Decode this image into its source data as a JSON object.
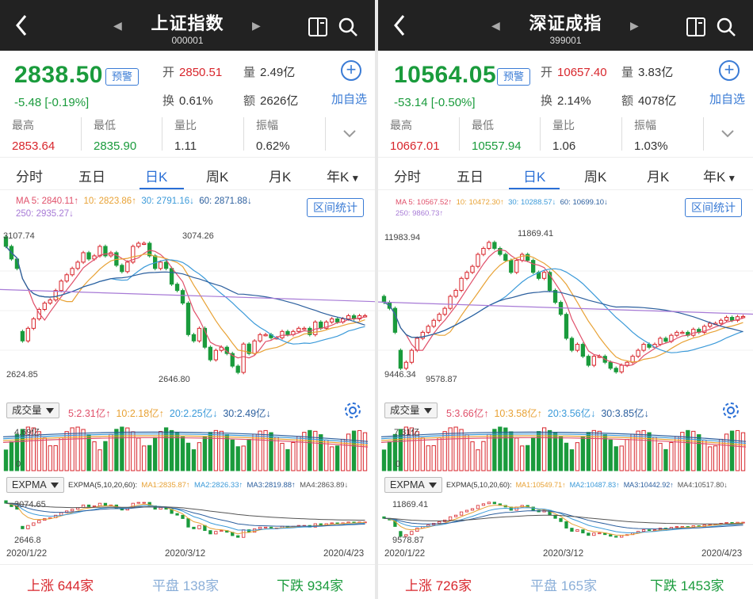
{
  "panels": [
    {
      "title": "上证指数",
      "code": "000001",
      "price": "2838.50",
      "warn_label": "预警",
      "change": "-5.48  [-0.19%]",
      "open_label": "开",
      "open": "2850.51",
      "volume_label": "量",
      "volume": "2.49亿",
      "turnover_label": "换",
      "turnover": "0.61%",
      "amount_label": "额",
      "amount": "2626亿",
      "add_label": "加自选",
      "stats": [
        {
          "label": "最高",
          "value": "2853.64",
          "color": "#d8262c"
        },
        {
          "label": "最低",
          "value": "2835.90",
          "color": "#1a9b3c"
        },
        {
          "label": "量比",
          "value": "1.11",
          "color": "#333333"
        },
        {
          "label": "振幅",
          "value": "0.62%",
          "color": "#333333"
        }
      ],
      "tabs": [
        "分时",
        "五日",
        "日K",
        "周K",
        "月K",
        "年K"
      ],
      "active_tab": 2,
      "ma_line1": [
        {
          "text": "MA 5: 2840.11↑",
          "color": "#e0506a"
        },
        {
          "text": "10: 2823.86↑",
          "color": "#e8a235"
        },
        {
          "text": "30: 2791.16↓",
          "color": "#3b9ad9"
        },
        {
          "text": "60: 2871.88↓",
          "color": "#2c5f9e"
        }
      ],
      "ma_line2": [
        {
          "text": "250: 2935.27↓",
          "color": "#a77ad6"
        }
      ],
      "range_label": "区间统计",
      "k_high_label": "3107.74",
      "k_low_label": "2624.85",
      "k_peak": "3074.26",
      "k_trough": "2646.80",
      "vol_select": "成交量",
      "vol_ma": [
        {
          "text": "5:2.31亿↑",
          "color": "#e0506a"
        },
        {
          "text": "10:2.18亿↑",
          "color": "#e8a235"
        },
        {
          "text": "20:2.25亿↓",
          "color": "#3b9ad9"
        },
        {
          "text": "30:2.49亿↓",
          "color": "#2c5f9e"
        }
      ],
      "vol_max": "4.69亿",
      "vol_zero": "0",
      "expma_select": "EXPMA",
      "expma_params": "EXPMA(5,10,20,60):",
      "expma_ma": [
        {
          "text": "MA1:2835.87↑",
          "color": "#e8a235"
        },
        {
          "text": "MA2:2826.33↑",
          "color": "#3b9ad9"
        },
        {
          "text": "MA3:2819.88↑",
          "color": "#2c5f9e"
        },
        {
          "text": "MA4:2863.89↓",
          "color": "#555555"
        }
      ],
      "expma_high": "3074.65",
      "expma_low": "2646.8",
      "dates": [
        "2020/1/22",
        "2020/3/12",
        "2020/4/23"
      ],
      "footer": {
        "up": "上涨 644家",
        "flat": "平盘 138家",
        "down": "下跌 934家"
      }
    },
    {
      "title": "深证成指",
      "code": "399001",
      "price": "10564.05",
      "warn_label": "预警",
      "change": "-53.14  [-0.50%]",
      "open_label": "开",
      "open": "10657.40",
      "volume_label": "量",
      "volume": "3.83亿",
      "turnover_label": "换",
      "turnover": "2.14%",
      "amount_label": "额",
      "amount": "4078亿",
      "add_label": "加自选",
      "stats": [
        {
          "label": "最高",
          "value": "10667.01",
          "color": "#d8262c"
        },
        {
          "label": "最低",
          "value": "10557.94",
          "color": "#1a9b3c"
        },
        {
          "label": "量比",
          "value": "1.06",
          "color": "#333333"
        },
        {
          "label": "振幅",
          "value": "1.03%",
          "color": "#333333"
        }
      ],
      "tabs": [
        "分时",
        "五日",
        "日K",
        "周K",
        "月K",
        "年K"
      ],
      "active_tab": 2,
      "ma_line1": [
        {
          "text": "MA 5: 10567.52↑",
          "color": "#e0506a"
        },
        {
          "text": "10: 10472.30↑",
          "color": "#e8a235"
        },
        {
          "text": "30: 10288.57↓",
          "color": "#3b9ad9"
        },
        {
          "text": "60: 10699.10↓",
          "color": "#2c5f9e"
        }
      ],
      "ma_line2": [
        {
          "text": "250: 9860.73↑",
          "color": "#a77ad6"
        }
      ],
      "range_label": "区间统计",
      "k_high_label": "11983.94",
      "k_low_label": "9446.34",
      "k_peak": "11869.41",
      "k_trough": "9578.87",
      "vol_select": "成交量",
      "vol_ma": [
        {
          "text": "5:3.66亿↑",
          "color": "#e0506a"
        },
        {
          "text": "10:3.58亿↑",
          "color": "#e8a235"
        },
        {
          "text": "20:3.56亿↓",
          "color": "#3b9ad9"
        },
        {
          "text": "30:3.85亿↓",
          "color": "#2c5f9e"
        }
      ],
      "vol_max": "7.31亿",
      "vol_zero": "0",
      "expma_select": "EXPMA",
      "expma_params": "EXPMA(5,10,20,60):",
      "expma_ma": [
        {
          "text": "MA1:10549.71↑",
          "color": "#e8a235"
        },
        {
          "text": "MA2:10487.83↑",
          "color": "#3b9ad9"
        },
        {
          "text": "MA3:10442.92↑",
          "color": "#2c5f9e"
        },
        {
          "text": "MA4:10517.80↓",
          "color": "#555555"
        }
      ],
      "expma_high": "11869.41",
      "expma_low": "9578.87",
      "dates": [
        "2020/1/22",
        "2020/3/12",
        "2020/4/23"
      ],
      "footer": {
        "up": "上涨 726家",
        "flat": "平盘 165家",
        "down": "下跌 1453家"
      }
    }
  ],
  "colors": {
    "up": "#d8262c",
    "down": "#1a9b3c",
    "accent": "#2a6fd6",
    "header_bg": "#222222"
  },
  "chart_data": [
    {
      "type": "candlestick",
      "title": "上证指数 日K",
      "x_range": [
        "2020/1/22",
        "2020/4/23"
      ],
      "ylim": [
        2624.85,
        3107.74
      ],
      "annotations": {
        "high": 3074.26,
        "low": 2646.8
      },
      "close": [
        3060,
        3020,
        2990,
        2760,
        2800,
        2830,
        2860,
        2880,
        2890,
        2920,
        2950,
        2970,
        2990,
        3010,
        3040,
        3020,
        3030,
        3060,
        3030,
        3040,
        3000,
        2980,
        3010,
        3060,
        3070,
        3070,
        3030,
        2990,
        3010,
        2990,
        2940,
        2920,
        2880,
        2780,
        2760,
        2800,
        2740,
        2700,
        2730,
        2740,
        2720,
        2680,
        2660,
        2750,
        2720,
        2760,
        2780,
        2780,
        2770,
        2770,
        2790,
        2780,
        2790,
        2800,
        2800,
        2780,
        2820,
        2800,
        2820,
        2830,
        2820,
        2830,
        2840,
        2830,
        2840,
        2840
      ],
      "open": [
        3090,
        3060,
        3020,
        2790,
        2760,
        2800,
        2830,
        2860,
        2880,
        2890,
        2920,
        2950,
        2970,
        2990,
        3010,
        3040,
        3020,
        3030,
        3060,
        3030,
        3040,
        3000,
        2980,
        3010,
        3060,
        3070,
        3070,
        3030,
        2990,
        3010,
        2990,
        2940,
        2920,
        2880,
        2780,
        2760,
        2800,
        2740,
        2700,
        2730,
        2740,
        2720,
        2680,
        2660,
        2750,
        2720,
        2760,
        2780,
        2780,
        2770,
        2770,
        2790,
        2780,
        2790,
        2800,
        2800,
        2780,
        2820,
        2800,
        2820,
        2830,
        2820,
        2830,
        2840,
        2830,
        2840
      ],
      "volume_max": "4.69亿"
    },
    {
      "type": "candlestick",
      "title": "深证成指 日K",
      "x_range": [
        "2020/1/22",
        "2020/4/23"
      ],
      "ylim": [
        9446.34,
        11983.94
      ],
      "annotations": {
        "high": 11869.41,
        "low": 9578.87
      },
      "close": [
        10800,
        10700,
        10300,
        9700,
        9800,
        10000,
        10200,
        10300,
        10400,
        10500,
        10600,
        10700,
        10900,
        11000,
        11200,
        11300,
        11400,
        11600,
        11700,
        11800,
        11700,
        11600,
        11500,
        11300,
        11500,
        11600,
        11500,
        11300,
        11200,
        11300,
        11000,
        10800,
        10600,
        10200,
        10000,
        10100,
        9900,
        9750,
        9900,
        9900,
        9800,
        9700,
        9640,
        9750,
        9800,
        9900,
        10000,
        10100,
        10050,
        10100,
        10200,
        10150,
        10250,
        10300,
        10300,
        10250,
        10350,
        10300,
        10400,
        10450,
        10450,
        10500,
        10550,
        10500,
        10560,
        10564
      ],
      "open": [
        10900,
        10800,
        10700,
        10000,
        9700,
        9800,
        10000,
        10200,
        10300,
        10400,
        10500,
        10600,
        10700,
        10900,
        11000,
        11200,
        11300,
        11400,
        11600,
        11700,
        11800,
        11700,
        11600,
        11500,
        11300,
        11500,
        11600,
        11500,
        11300,
        11200,
        11300,
        11000,
        10800,
        10600,
        10200,
        10000,
        10100,
        9900,
        9750,
        9900,
        9900,
        9800,
        9700,
        9640,
        9750,
        9800,
        9900,
        10000,
        10100,
        10050,
        10100,
        10200,
        10150,
        10250,
        10300,
        10300,
        10250,
        10350,
        10300,
        10400,
        10450,
        10450,
        10500,
        10550,
        10500,
        10560
      ],
      "volume_max": "7.31亿"
    }
  ]
}
